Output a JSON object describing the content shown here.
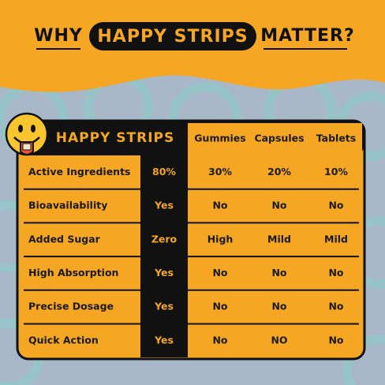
{
  "header": {
    "why": "WHY",
    "brand": "HAPPY STRIPS",
    "matter": "MATTER?"
  },
  "table": {
    "columns": [
      "HAPPY STRIPS",
      "Gummies",
      "Capsules",
      "Tablets"
    ],
    "rows": [
      [
        "Active Ingredients",
        "80%",
        "30%",
        "20%",
        "10%"
      ],
      [
        "Bioavailability",
        "Yes",
        "No",
        "No",
        "No"
      ],
      [
        "Added Sugar",
        "Zero",
        "High",
        "Mild",
        "Mild"
      ],
      [
        "High Absorption",
        "Yes",
        "No",
        "No",
        "No"
      ],
      [
        "Precise Dosage",
        "Yes",
        "No",
        "No",
        "No"
      ],
      [
        "Quick Action",
        "Yes",
        "No",
        "NO",
        "No"
      ]
    ]
  }
}
